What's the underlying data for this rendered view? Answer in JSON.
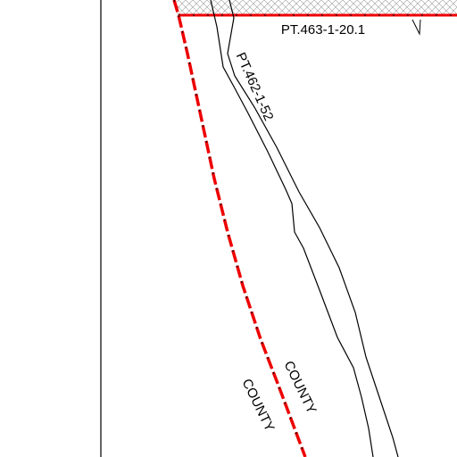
{
  "labels": {
    "parcel_top": "PT.463-1-20.1",
    "parcel_road": "PT.462-1-52",
    "county_right": "COUNTY",
    "county_left": "COUNTY"
  }
}
